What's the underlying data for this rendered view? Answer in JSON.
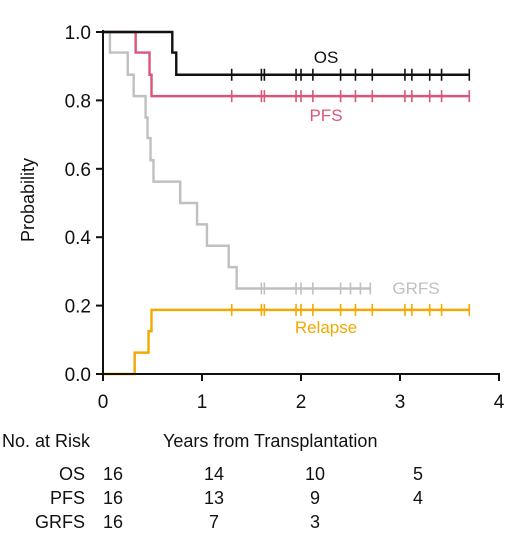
{
  "chart_data": {
    "type": "line",
    "step": true,
    "xlabel": "Years from Transplantation",
    "ylabel": "Probability",
    "xlim": [
      0,
      4
    ],
    "ylim": [
      0,
      1
    ],
    "x_ticks": [
      "0",
      "1",
      "2",
      "3",
      "4"
    ],
    "y_ticks": [
      "0.0",
      "0.2",
      "0.4",
      "0.6",
      "0.8",
      "1.0"
    ],
    "series": [
      {
        "name": "OS",
        "color": "#111111",
        "steps": [
          [
            0,
            1.0
          ],
          [
            0.7,
            0.94
          ],
          [
            0.74,
            0.875
          ],
          [
            3.7,
            0.875
          ]
        ],
        "censors": [
          1.3,
          1.6,
          1.63,
          1.95,
          2.0,
          2.12,
          2.4,
          2.55,
          2.72,
          3.05,
          3.12,
          3.3,
          3.42,
          3.7
        ]
      },
      {
        "name": "PFS",
        "color": "#d9557a",
        "steps": [
          [
            0,
            1.0
          ],
          [
            0.33,
            0.94
          ],
          [
            0.47,
            0.875
          ],
          [
            0.49,
            0.8125
          ],
          [
            3.7,
            0.8125
          ]
        ],
        "censors": [
          1.3,
          1.6,
          1.63,
          1.95,
          2.0,
          2.12,
          2.4,
          2.55,
          2.72,
          3.05,
          3.12,
          3.3,
          3.42,
          3.7
        ]
      },
      {
        "name": "GRFS",
        "color": "#c0c0c0",
        "steps": [
          [
            0,
            1.0
          ],
          [
            0.07,
            0.94
          ],
          [
            0.25,
            0.875
          ],
          [
            0.31,
            0.8125
          ],
          [
            0.43,
            0.75
          ],
          [
            0.45,
            0.69
          ],
          [
            0.48,
            0.625
          ],
          [
            0.51,
            0.5625
          ],
          [
            0.78,
            0.5
          ],
          [
            0.95,
            0.4375
          ],
          [
            1.05,
            0.375
          ],
          [
            1.27,
            0.3125
          ],
          [
            1.35,
            0.25
          ],
          [
            2.7,
            0.25
          ]
        ],
        "censors": [
          1.6,
          1.63,
          1.95,
          2.0,
          2.12,
          2.4,
          2.5,
          2.6,
          2.7
        ]
      },
      {
        "name": "Relapse",
        "color": "#f2a900",
        "steps": [
          [
            0,
            0.0
          ],
          [
            0.3,
            0.0
          ],
          [
            0.32,
            0.0625
          ],
          [
            0.46,
            0.125
          ],
          [
            0.49,
            0.1875
          ],
          [
            3.7,
            0.1875
          ]
        ],
        "censors": [
          1.3,
          1.6,
          1.63,
          1.95,
          2.0,
          2.12,
          2.4,
          2.55,
          2.72,
          3.05,
          3.12,
          3.3,
          3.42,
          3.7
        ]
      }
    ],
    "risk_table": {
      "title": "No. at Risk",
      "rows": [
        {
          "label": "OS",
          "values": [
            "16",
            "14",
            "10",
            "5"
          ]
        },
        {
          "label": "PFS",
          "values": [
            "16",
            "13",
            "9",
            "4"
          ]
        },
        {
          "label": "GRFS",
          "values": [
            "16",
            "7",
            "3",
            ""
          ]
        }
      ]
    }
  }
}
